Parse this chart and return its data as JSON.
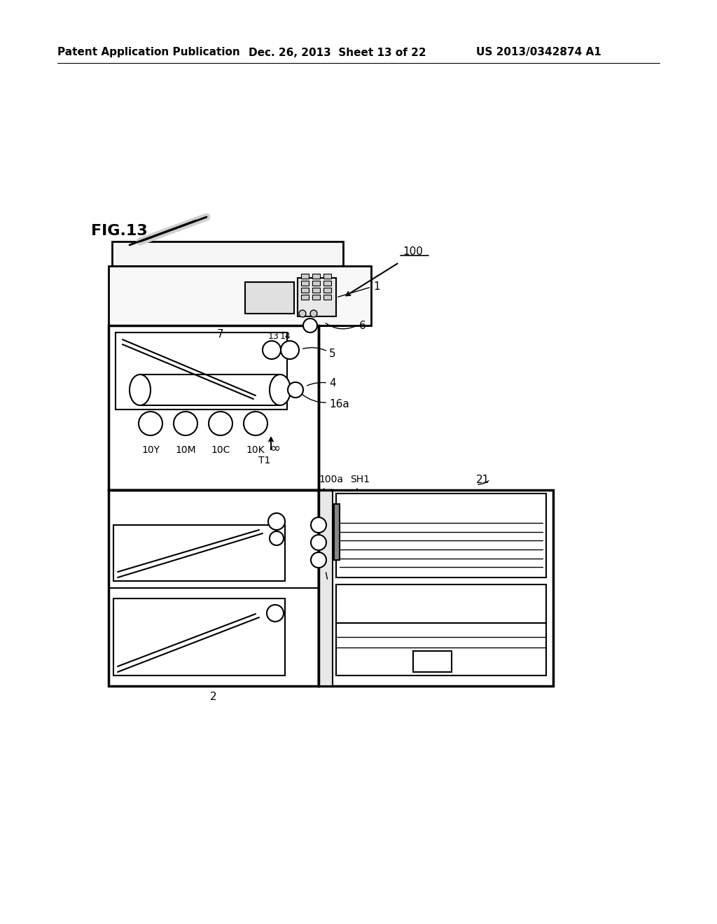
{
  "header_left": "Patent Application Publication",
  "header_mid": "Dec. 26, 2013  Sheet 13 of 22",
  "header_right": "US 2013/0342874 A1",
  "fig_label": "FIG.13",
  "bg_color": "#ffffff",
  "line_color": "#000000",
  "label_100": "100",
  "label_1": "1",
  "label_6": "6",
  "label_7": "7",
  "label_13": "13",
  "label_14": "14",
  "label_5": "5",
  "label_4": "4",
  "label_16a": "16a",
  "label_10Y": "10Y",
  "label_10M": "10M",
  "label_10C": "10C",
  "label_10K": "10K",
  "label_T1": "T1",
  "label_100a": "100a",
  "label_SH1": "SH1",
  "label_21": "21",
  "label_2": "2"
}
